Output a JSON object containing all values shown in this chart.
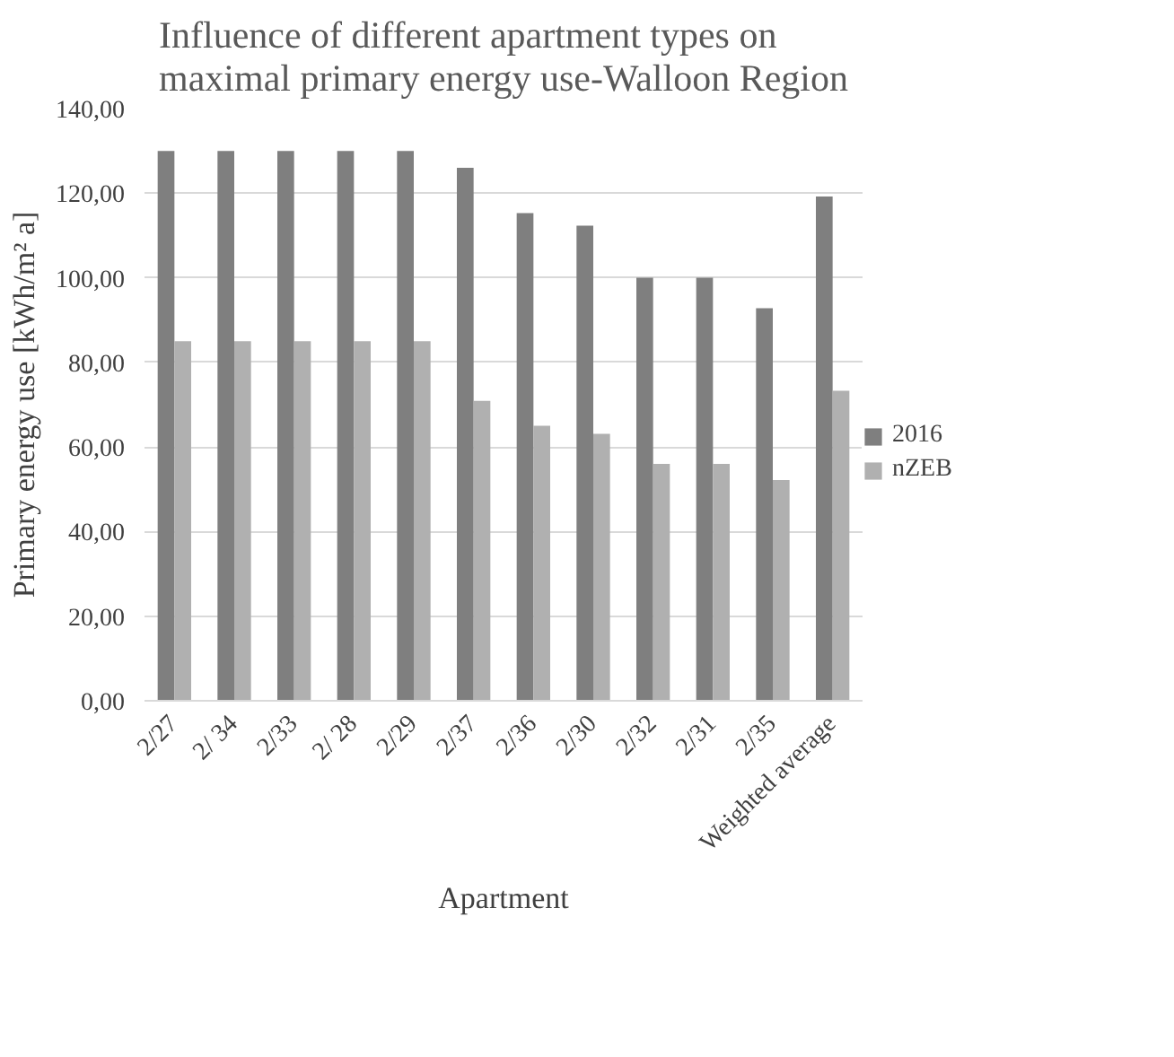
{
  "chart_data": {
    "type": "bar",
    "title": "Influence of different apartment types on maximal primary energy use-Walloon Region",
    "xlabel": "Apartment",
    "ylabel": "Primary energy use [kWh/m² a]",
    "categories": [
      "2/27",
      "2/ 34",
      "2/33",
      "2/ 28",
      "2/29",
      "2/37",
      "2/36",
      "2/30",
      "2/32",
      "2/31",
      "2/35",
      "Weighted average"
    ],
    "series": [
      {
        "name": "2016",
        "color": "#7f7f7f",
        "values": [
          130,
          130,
          130,
          130,
          130,
          126,
          115.3,
          112.3,
          100,
          100,
          92.8,
          119.2
        ]
      },
      {
        "name": "nZEB",
        "color": "#b0b0b0",
        "values": [
          85,
          85,
          85,
          85,
          85,
          70.9,
          65,
          63.1,
          56,
          56,
          52.2,
          73.3
        ]
      }
    ],
    "ylim": [
      0,
      140
    ],
    "yticks": [
      {
        "value": 0,
        "label": "0,00"
      },
      {
        "value": 20,
        "label": "20,00"
      },
      {
        "value": 40,
        "label": "40,00"
      },
      {
        "value": 60,
        "label": "60,00"
      },
      {
        "value": 80,
        "label": "80,00"
      },
      {
        "value": 100,
        "label": "100,00"
      },
      {
        "value": 120,
        "label": "120,00"
      },
      {
        "value": 140,
        "label": "140,00"
      }
    ],
    "grid": "y",
    "legend": "right"
  }
}
